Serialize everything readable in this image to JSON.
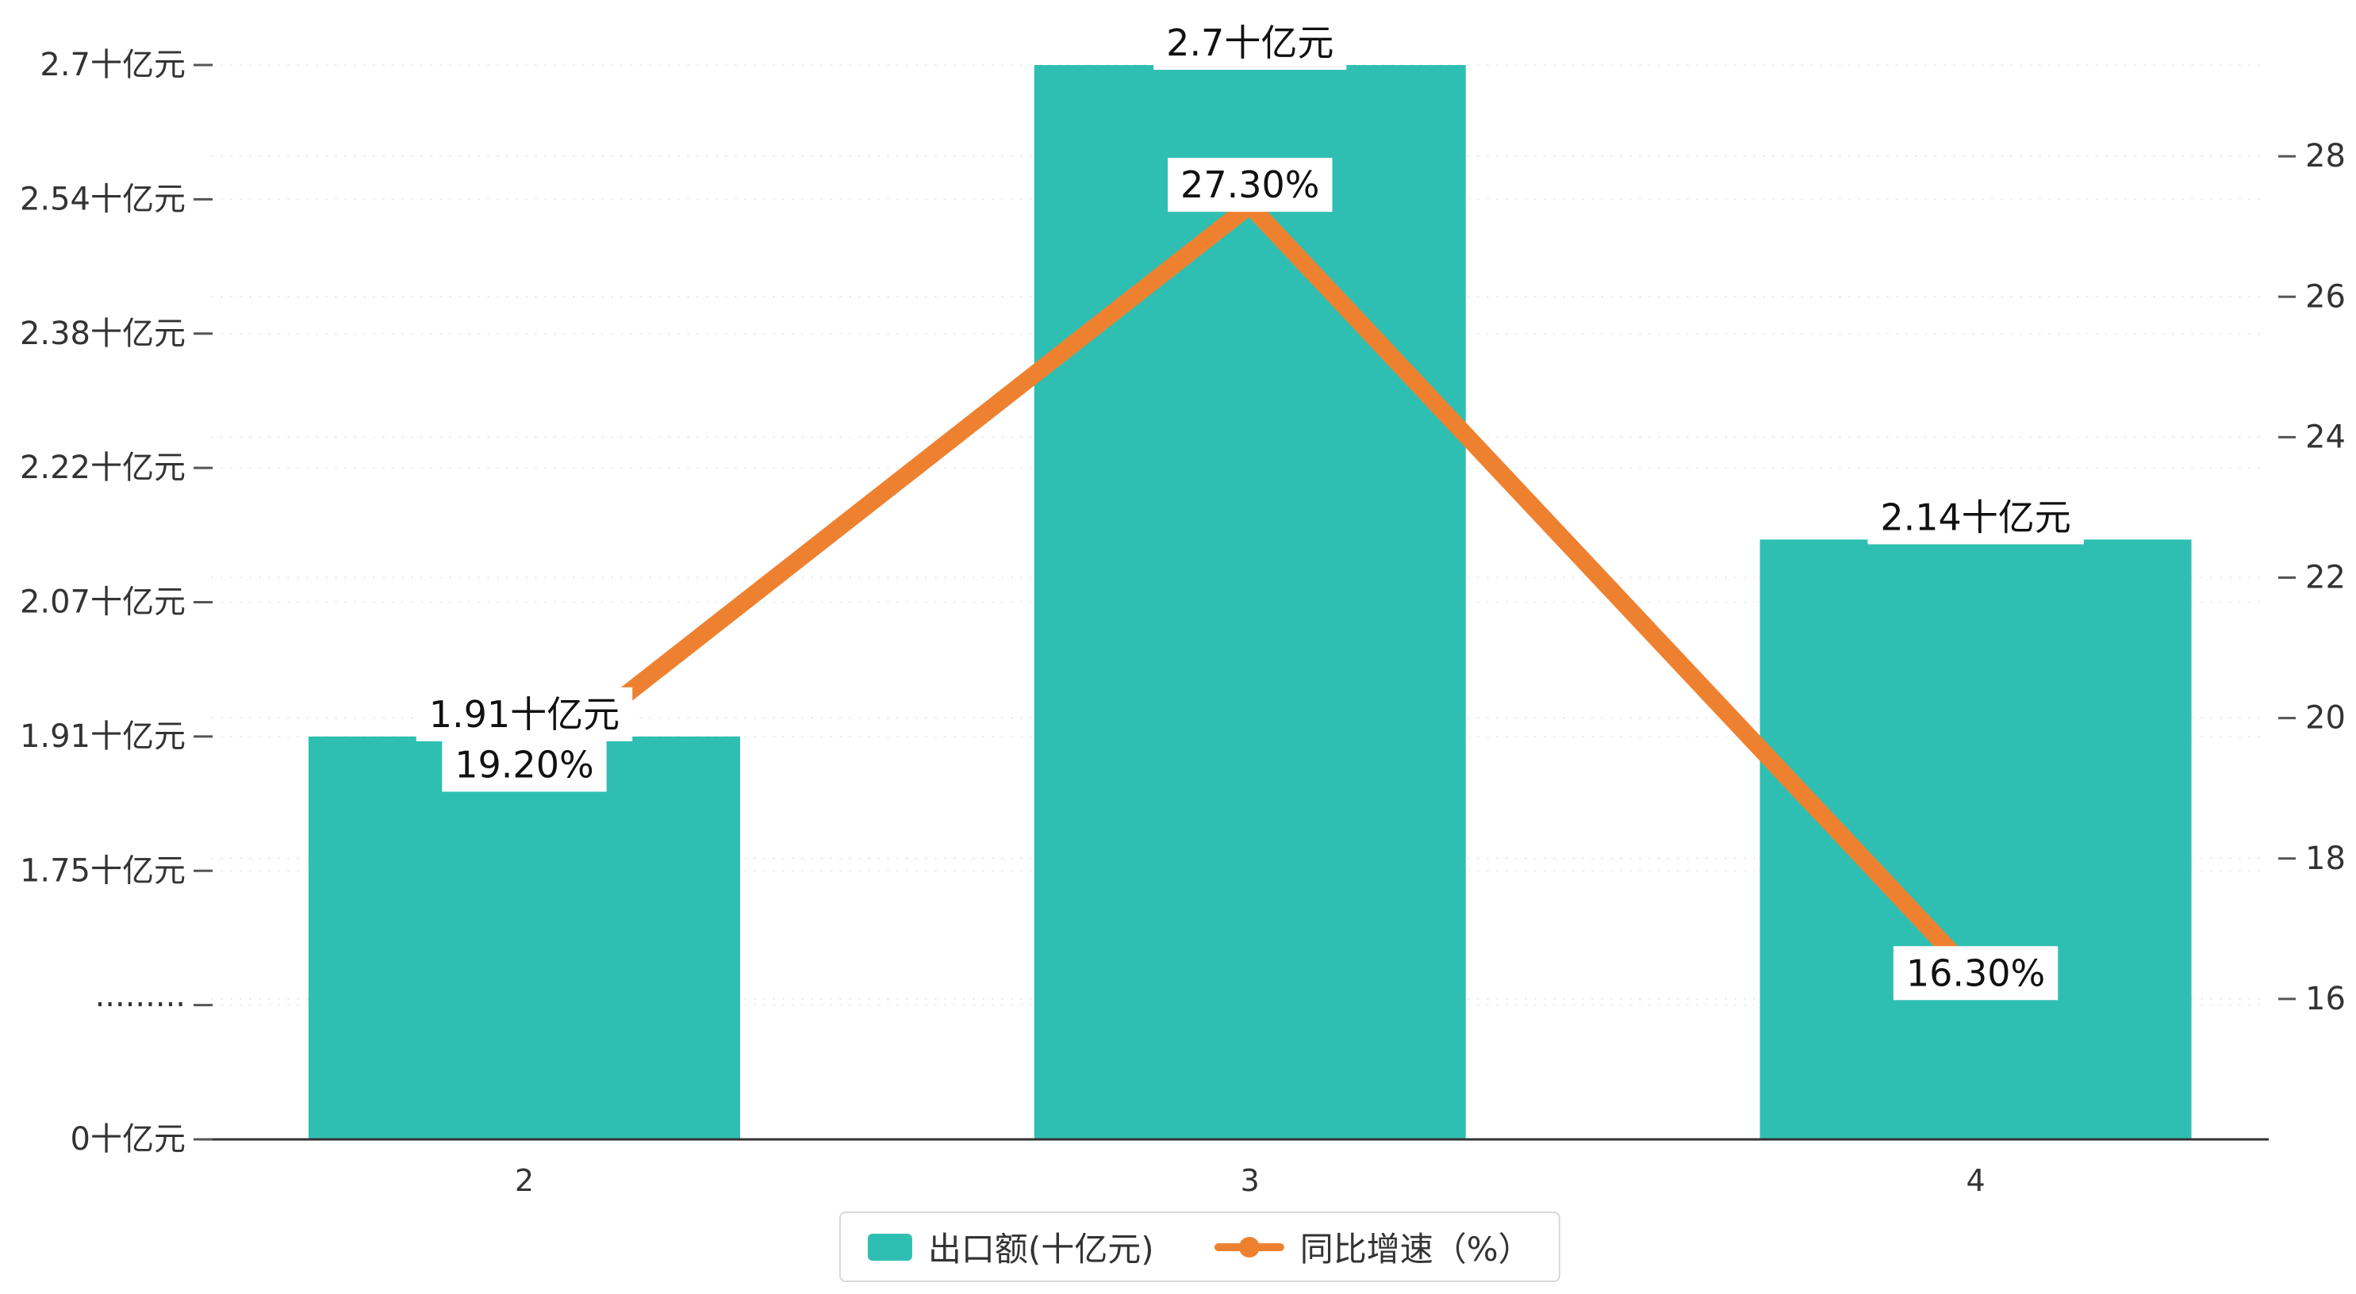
{
  "chart_data": {
    "type": "bar",
    "subtype": "bar-line-combo",
    "categories": [
      "2",
      "3",
      "4"
    ],
    "series": [
      {
        "name": "出口额(十亿元)",
        "type": "bar",
        "axis": "left",
        "values": [
          1.91,
          2.7,
          2.14
        ],
        "value_labels": [
          "1.91十亿元",
          "2.7十亿元",
          "2.14十亿元"
        ],
        "color": "#2FBFB2"
      },
      {
        "name": "同比增速（%）",
        "type": "line",
        "axis": "right",
        "values": [
          19.2,
          27.3,
          16.3
        ],
        "value_labels": [
          "19.20%",
          "27.30%",
          "16.30%"
        ],
        "color": "#EE8130"
      }
    ],
    "left_axis": {
      "tick_labels": [
        "2.7十亿元",
        "2.54十亿元",
        "2.38十亿元",
        "2.22十亿元",
        "2.07十亿元",
        "1.91十亿元",
        "1.75十亿元",
        "·········",
        "0十亿元"
      ],
      "tick_values": [
        2.7,
        2.54,
        2.38,
        2.22,
        2.07,
        1.91,
        1.75,
        null,
        0
      ],
      "axis_break": true
    },
    "right_axis": {
      "tick_labels": [
        "28",
        "26",
        "24",
        "22",
        "20",
        "18",
        "16"
      ],
      "tick_values": [
        28,
        26,
        24,
        22,
        20,
        18,
        16
      ],
      "min": 14,
      "max": 29.3
    },
    "grid": true,
    "legend_position": "bottom",
    "title": "",
    "xlabel": "",
    "ylabel_left": "十亿元",
    "ylabel_right": "%"
  },
  "legend": {
    "items": [
      {
        "label": "出口额(十亿元)",
        "swatch": "bar",
        "color": "#2FBFB2"
      },
      {
        "label": "同比增速（%）",
        "swatch": "line",
        "color": "#EE8130"
      }
    ]
  },
  "colors": {
    "bar": "#2FBFB2",
    "line": "#EE8130",
    "axis_line": "#333333",
    "tick_text": "#333333",
    "label_text": "#111111",
    "grid_left": "#f0f0f0",
    "grid_right": "#ececec",
    "label_bg": "#ffffff",
    "background": "#ffffff"
  }
}
